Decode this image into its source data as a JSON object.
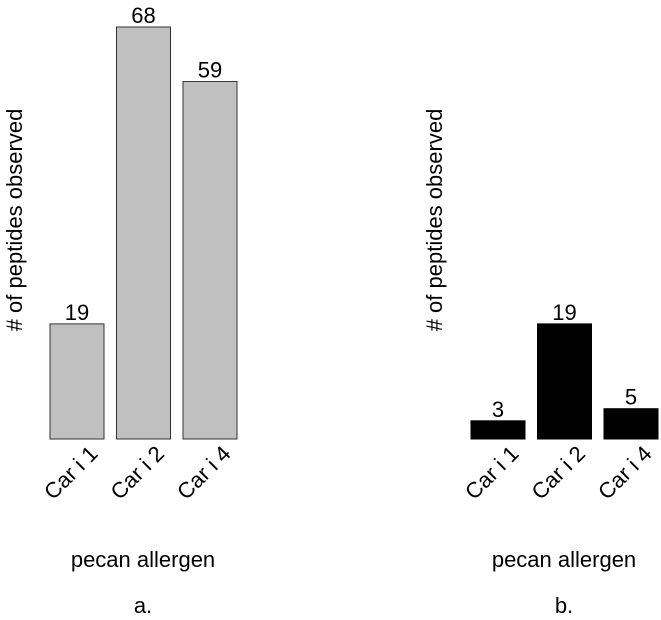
{
  "chart_data": [
    {
      "panel_label": "a.",
      "type": "bar",
      "categories": [
        "Car i 1",
        "Car i 2",
        "Car i 4"
      ],
      "values": [
        19,
        68,
        59
      ],
      "xlabel": "pecan allergen",
      "ylabel": "# of peptides observed",
      "ylim": [
        0,
        68
      ],
      "bar_color": "#c0c0c0",
      "bar_edge_color": "#333333",
      "grid": false,
      "data_labels": true,
      "y_ticks": false,
      "tick_label_rotation": -45
    },
    {
      "panel_label": "b.",
      "type": "bar",
      "categories": [
        "Car i 1",
        "Car i 2",
        "Car i 4"
      ],
      "values": [
        3,
        19,
        5
      ],
      "xlabel": "pecan allergen",
      "ylabel": "# of peptides observed",
      "ylim": [
        0,
        68
      ],
      "bar_color": "#000000",
      "bar_edge_color": "#000000",
      "grid": false,
      "data_labels": true,
      "y_ticks": false,
      "tick_label_rotation": -45
    }
  ]
}
